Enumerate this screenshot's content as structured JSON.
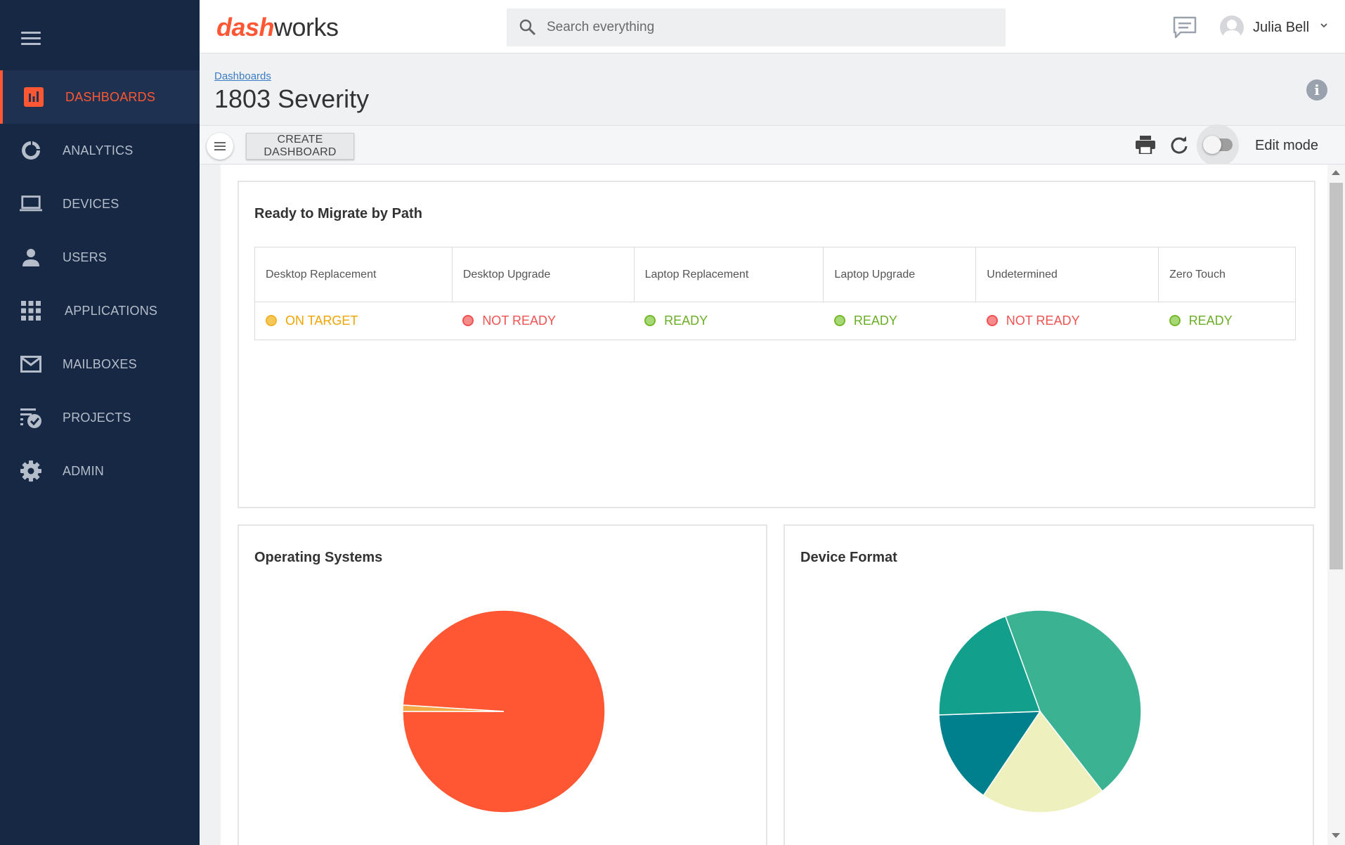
{
  "app": {
    "logo_dash": "dash",
    "logo_works": "works"
  },
  "search": {
    "placeholder": "Search everything"
  },
  "user": {
    "name": "Julia Bell"
  },
  "sidebar": {
    "items": [
      {
        "label": "DASHBOARDS",
        "icon": "bar-chart-icon",
        "active": true
      },
      {
        "label": "ANALYTICS",
        "icon": "donut-icon"
      },
      {
        "label": "DEVICES",
        "icon": "laptop-icon"
      },
      {
        "label": "USERS",
        "icon": "person-icon"
      },
      {
        "label": "APPLICATIONS",
        "icon": "grid-icon"
      },
      {
        "label": "MAILBOXES",
        "icon": "mail-icon"
      },
      {
        "label": "PROJECTS",
        "icon": "checklist-icon"
      },
      {
        "label": "ADMIN",
        "icon": "gear-icon"
      }
    ]
  },
  "header": {
    "breadcrumb": "Dashboards",
    "title": "1803 Severity"
  },
  "toolbar": {
    "create_label": "CREATE DASHBOARD",
    "edit_mode_label": "Edit mode",
    "edit_mode_on": false
  },
  "migrate": {
    "title": "Ready to Migrate by Path",
    "columns": [
      "Desktop Replacement",
      "Desktop Upgrade",
      "Laptop Replacement",
      "Laptop Upgrade",
      "Undetermined",
      "Zero Touch"
    ],
    "statuses": [
      "ON TARGET",
      "NOT READY",
      "READY",
      "READY",
      "NOT READY",
      "READY"
    ]
  },
  "colors": {
    "accent": "#ff5733",
    "sidebar_bg": "#172844",
    "on_target": "#f0b429",
    "not_ready": "#f05252",
    "ready": "#76b82a"
  },
  "os_card": {
    "title": "Operating Systems"
  },
  "device_card": {
    "title": "Device Format"
  },
  "chart_data": [
    {
      "type": "pie",
      "title": "Operating Systems",
      "slices": [
        {
          "value": 99,
          "color": "#ff5733"
        },
        {
          "value": 1,
          "color": "#f4a949"
        }
      ]
    },
    {
      "type": "pie",
      "title": "Device Format",
      "slices": [
        {
          "value": 45,
          "color": "#3bb393"
        },
        {
          "value": 20,
          "color": "#eef0bd"
        },
        {
          "value": 15,
          "color": "#007f8c"
        },
        {
          "value": 20,
          "color": "#12a08c"
        }
      ]
    }
  ]
}
